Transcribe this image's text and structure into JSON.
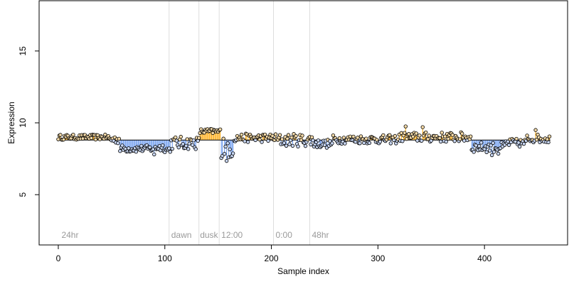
{
  "chart_data": {
    "type": "scatter",
    "title": "",
    "xlabel": "Sample index",
    "ylabel": "Expression",
    "xlim": [
      -18,
      478
    ],
    "ylim": [
      1.5,
      18.5
    ],
    "xticks": [
      0,
      100,
      200,
      300,
      400
    ],
    "yticks": [
      5,
      10,
      15
    ],
    "baseline": 8.8,
    "grid": false,
    "legend": "none",
    "colors": {
      "above": "#FFA500",
      "below": "#6495ED",
      "point_edge": "#000000",
      "divider": "#dddddd",
      "annotation": "#9a9a9a"
    },
    "dividers": [
      104,
      132,
      151,
      202,
      236
    ],
    "annotations": [
      {
        "x": 3,
        "label": "24hr"
      },
      {
        "x": 106,
        "label": "dawn"
      },
      {
        "x": 133,
        "label": "dusk"
      },
      {
        "x": 153,
        "label": "12:00"
      },
      {
        "x": 204,
        "label": "0:00"
      },
      {
        "x": 238,
        "label": "48hr"
      }
    ],
    "segments": [
      {
        "x": [
          0,
          48
        ],
        "level": 9.0,
        "jitter": 0.18
      },
      {
        "x": [
          48,
          58
        ],
        "level": 8.85,
        "jitter": 0.3
      },
      {
        "x": [
          58,
          90
        ],
        "level": 8.2,
        "jitter": 0.25
      },
      {
        "x": [
          90,
          100
        ],
        "level": 8.3,
        "jitter": 0.3
      },
      {
        "x": [
          100,
          106
        ],
        "level": 8.15,
        "jitter": 0.2
      },
      {
        "x": [
          106,
          133
        ],
        "level": 8.6,
        "jitter": 0.45
      },
      {
        "x": [
          133,
          153
        ],
        "level": 9.4,
        "jitter": 0.2
      },
      {
        "x": [
          153,
          165
        ],
        "level": 8.1,
        "jitter": 0.55
      },
      {
        "x": [
          165,
          205
        ],
        "level": 8.95,
        "jitter": 0.3
      },
      {
        "x": [
          205,
          240
        ],
        "level": 8.8,
        "jitter": 0.45
      },
      {
        "x": [
          240,
          258
        ],
        "level": 8.55,
        "jitter": 0.3
      },
      {
        "x": [
          258,
          320
        ],
        "level": 8.85,
        "jitter": 0.3
      },
      {
        "x": [
          320,
          388
        ],
        "level": 9.0,
        "jitter": 0.35
      },
      {
        "x": [
          388,
          420
        ],
        "level": 8.3,
        "jitter": 0.35
      },
      {
        "x": [
          420,
          440
        ],
        "level": 8.6,
        "jitter": 0.3
      },
      {
        "x": [
          440,
          462
        ],
        "level": 8.9,
        "jitter": 0.3
      }
    ],
    "extremes": [
      {
        "x": 90,
        "y": 7.8
      },
      {
        "x": 158,
        "y": 7.35
      },
      {
        "x": 160,
        "y": 7.6
      },
      {
        "x": 155,
        "y": 8.9
      },
      {
        "x": 326,
        "y": 9.75
      },
      {
        "x": 342,
        "y": 9.7
      },
      {
        "x": 407,
        "y": 7.75
      },
      {
        "x": 413,
        "y": 7.85
      },
      {
        "x": 448,
        "y": 9.5
      }
    ]
  }
}
